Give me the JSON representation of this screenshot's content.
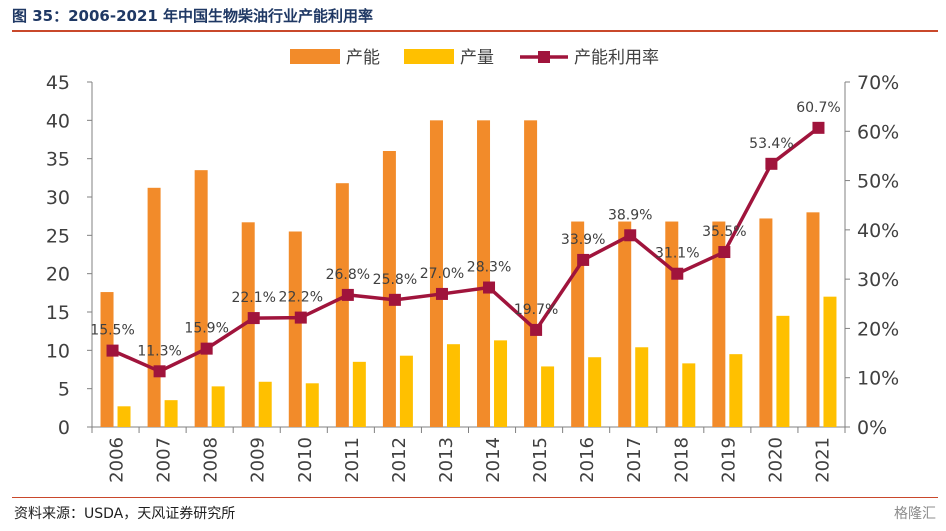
{
  "header": {
    "title": "图 35：2006-2021 年中国生物柴油行业产能利用率"
  },
  "footer": {
    "source": "资料来源：USDA，天风证券研究所",
    "watermark": "格隆汇"
  },
  "colors": {
    "capacity": "#f28b2a",
    "output": "#ffc000",
    "utilization": "#a0143c",
    "rule": "#c9482b"
  },
  "chart_data": {
    "type": "bar",
    "categories": [
      "2006",
      "2007",
      "2008",
      "2009",
      "2010",
      "2011",
      "2012",
      "2013",
      "2014",
      "2015",
      "2016",
      "2017",
      "2018",
      "2019",
      "2020",
      "2021"
    ],
    "series": [
      {
        "name": "产能",
        "type": "bar",
        "axis": "left",
        "values": [
          17.6,
          31.2,
          33.5,
          26.7,
          25.5,
          31.8,
          36.0,
          40.0,
          40.0,
          40.0,
          26.8,
          26.8,
          26.8,
          26.8,
          27.2,
          28.0
        ]
      },
      {
        "name": "产量",
        "type": "bar",
        "axis": "left",
        "values": [
          2.7,
          3.5,
          5.3,
          5.9,
          5.7,
          8.5,
          9.3,
          10.8,
          11.3,
          7.9,
          9.1,
          10.4,
          8.3,
          9.5,
          14.5,
          17.0
        ]
      },
      {
        "name": "产能利用率",
        "type": "line",
        "axis": "right",
        "values": [
          15.5,
          11.3,
          15.9,
          22.1,
          22.2,
          26.8,
          25.8,
          27.0,
          28.3,
          19.7,
          33.9,
          38.9,
          31.1,
          35.5,
          53.4,
          60.7
        ],
        "labels": [
          "15.5%",
          "11.3%",
          "15.9%",
          "22.1%",
          "22.2%",
          "26.8%",
          "25.8%",
          "27.0%",
          "28.3%",
          "19.7%",
          "33.9%",
          "38.9%",
          "31.1%",
          "35.5%",
          "53.4%",
          "60.7%"
        ]
      }
    ],
    "left_axis": {
      "ylim": [
        0,
        45
      ],
      "ticks": [
        "0",
        "5",
        "10",
        "15",
        "20",
        "25",
        "30",
        "35",
        "40",
        "45"
      ]
    },
    "right_axis": {
      "ylim": [
        0,
        70
      ],
      "ticks": [
        "0%",
        "10%",
        "20%",
        "30%",
        "40%",
        "50%",
        "60%",
        "70%"
      ]
    },
    "legend": {
      "position": "top-center"
    },
    "grid": false
  }
}
